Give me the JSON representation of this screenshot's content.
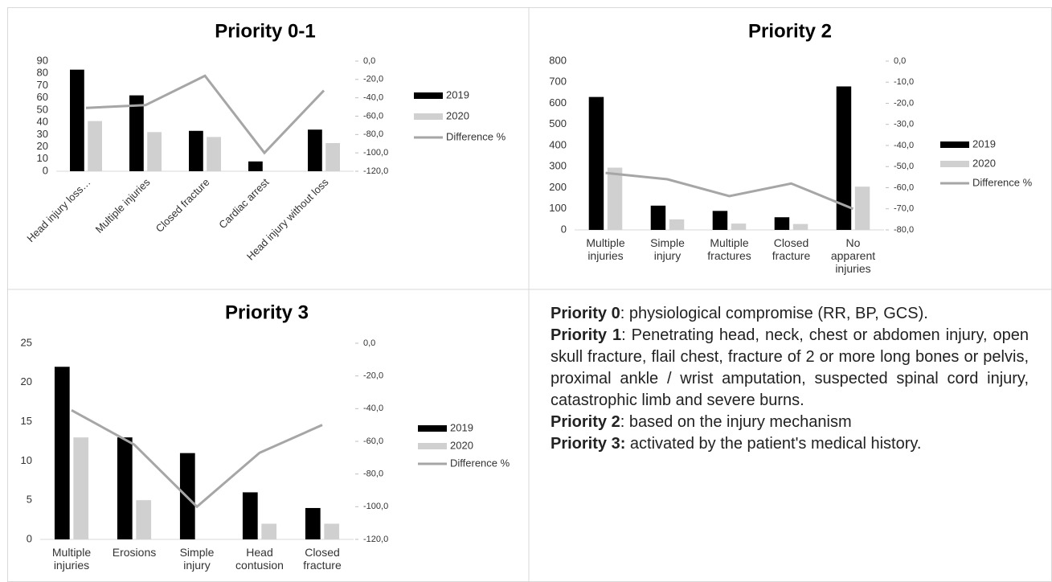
{
  "chart_data": [
    {
      "type": "bar",
      "title": "Priority 0-1",
      "categories": [
        "Head injury loss…",
        "Multiple injuries",
        "Closed fracture",
        "Cardiac arrest",
        "Head injury without loss"
      ],
      "series": [
        {
          "name": "2019",
          "color": "#000000",
          "values": [
            83,
            62,
            33,
            8,
            34
          ]
        },
        {
          "name": "2020",
          "color": "#d0d0d0",
          "values": [
            41,
            32,
            28,
            0,
            23
          ]
        },
        {
          "name": "Difference %",
          "color": "#a6a6a6",
          "axis": "y2",
          "values": [
            -51,
            -48,
            -16,
            -100,
            -32
          ]
        }
      ],
      "ylim": [
        0,
        90
      ],
      "yticks": [
        0,
        10,
        20,
        30,
        40,
        50,
        60,
        70,
        80,
        90
      ],
      "y2lim": [
        -120,
        0
      ],
      "y2ticks": [
        {
          "value": 0,
          "label": "0,0"
        },
        {
          "value": -20,
          "label": "-20,0"
        },
        {
          "value": -40,
          "label": "-40,0"
        },
        {
          "value": -60,
          "label": "-60,0"
        },
        {
          "value": -80,
          "label": "-80,0"
        },
        {
          "value": -100,
          "label": "-100,0"
        },
        {
          "value": -120,
          "label": "-120,0"
        }
      ]
    },
    {
      "type": "bar",
      "title": "Priority 2",
      "categories": [
        "Multiple injuries",
        "Simple injury",
        "Multiple fractures",
        "Closed fracture",
        "No apparent injuries"
      ],
      "series": [
        {
          "name": "2019",
          "color": "#000000",
          "values": [
            630,
            115,
            90,
            60,
            680
          ]
        },
        {
          "name": "2020",
          "color": "#d0d0d0",
          "values": [
            295,
            50,
            30,
            28,
            205
          ]
        },
        {
          "name": "Difference %",
          "color": "#a6a6a6",
          "axis": "y2",
          "values": [
            -53,
            -56,
            -64,
            -58,
            -70
          ]
        }
      ],
      "ylim": [
        0,
        800
      ],
      "yticks": [
        0,
        100,
        200,
        300,
        400,
        500,
        600,
        700,
        800
      ],
      "y2lim": [
        -80,
        0
      ],
      "y2ticks": [
        {
          "value": 0,
          "label": "0,0"
        },
        {
          "value": -10,
          "label": "-10,0"
        },
        {
          "value": -20,
          "label": "-20,0"
        },
        {
          "value": -30,
          "label": "-30,0"
        },
        {
          "value": -40,
          "label": "-40,0"
        },
        {
          "value": -50,
          "label": "-50,0"
        },
        {
          "value": -60,
          "label": "-60,0"
        },
        {
          "value": -70,
          "label": "-70,0"
        },
        {
          "value": -80,
          "label": "-80,0"
        }
      ]
    },
    {
      "type": "bar",
      "title": "Priority 3",
      "categories": [
        "Multiple injuries",
        "Erosions",
        "Simple injury",
        "Head contusion",
        "Closed fracture"
      ],
      "series": [
        {
          "name": "2019",
          "color": "#000000",
          "values": [
            22,
            13,
            11,
            6,
            4
          ]
        },
        {
          "name": "2020",
          "color": "#d0d0d0",
          "values": [
            13,
            5,
            0,
            2,
            2
          ]
        },
        {
          "name": "Difference %",
          "color": "#a6a6a6",
          "axis": "y2",
          "values": [
            -41,
            -62,
            -100,
            -67,
            -50
          ]
        }
      ],
      "ylim": [
        0,
        25
      ],
      "yticks": [
        0,
        5,
        10,
        15,
        20,
        25
      ],
      "y2lim": [
        -120,
        0
      ],
      "y2ticks": [
        {
          "value": 0,
          "label": "0,0"
        },
        {
          "value": -20,
          "label": "-20,0"
        },
        {
          "value": -40,
          "label": "-40,0"
        },
        {
          "value": -60,
          "label": "-60,0"
        },
        {
          "value": -80,
          "label": "-80,0"
        },
        {
          "value": -100,
          "label": "-100,0"
        },
        {
          "value": -120,
          "label": "-120,0"
        }
      ]
    }
  ],
  "notes": [
    {
      "label": "Priority 0",
      "text": ": physiological compromise (RR, BP, GCS)."
    },
    {
      "label": "Priority 1",
      "text": ": Penetrating head, neck, chest or abdomen injury, open skull fracture, flail chest, fracture of 2 or more long bones or pelvis, proximal ankle / wrist amputation, suspected spinal cord injury, catastrophic limb and severe burns."
    },
    {
      "label": "Priority 2",
      "text": ": based on the injury mechanism"
    },
    {
      "label": "Priority 3:",
      "text": " activated by the patient's medical history."
    }
  ]
}
